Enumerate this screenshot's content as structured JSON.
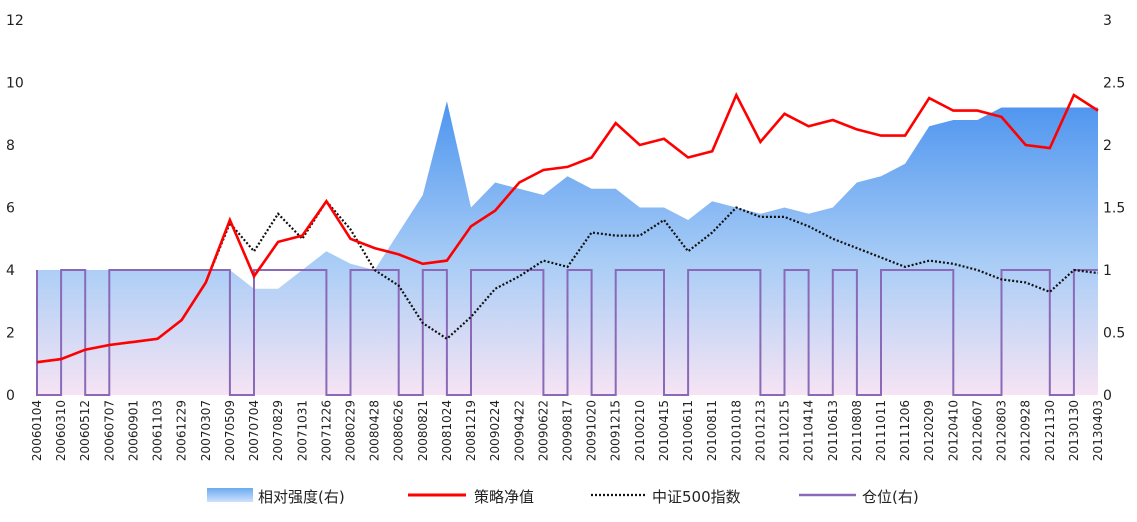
{
  "chart_data": {
    "type": "line",
    "left_axis": {
      "min": 0,
      "max": 12,
      "ticks": [
        "0",
        "2",
        "4",
        "6",
        "8",
        "10",
        "12"
      ]
    },
    "right_axis": {
      "min": 0,
      "max": 3,
      "ticks": [
        "0",
        "0.5",
        "1",
        "1.5",
        "2",
        "2.5",
        "3"
      ]
    },
    "categories": [
      "20060104",
      "20060310",
      "20060512",
      "20060707",
      "20060901",
      "20061103",
      "20061229",
      "20070307",
      "20070509",
      "20070704",
      "20070829",
      "20071031",
      "20071226",
      "20080229",
      "20080428",
      "20080626",
      "20080821",
      "20081024",
      "20081219",
      "20090224",
      "20090422",
      "20090622",
      "20090817",
      "20091020",
      "20091215",
      "20100210",
      "20100415",
      "20100611",
      "20100811",
      "20101018",
      "20101213",
      "20110215",
      "20110414",
      "20110613",
      "20110808",
      "20111011",
      "20111206",
      "20120209",
      "20120410",
      "20120607",
      "20120803",
      "20120928",
      "20121130",
      "20130130",
      "20130403"
    ],
    "series": [
      {
        "name": "相对强度(右)",
        "axis": "right",
        "type": "area",
        "values": [
          1.0,
          1.0,
          1.0,
          1.0,
          1.0,
          1.0,
          1.0,
          1.0,
          1.0,
          0.85,
          0.85,
          1.0,
          1.15,
          1.05,
          1.0,
          1.3,
          1.6,
          2.35,
          1.5,
          1.7,
          1.65,
          1.6,
          1.75,
          1.65,
          1.65,
          1.5,
          1.5,
          1.4,
          1.55,
          1.5,
          1.45,
          1.5,
          1.45,
          1.5,
          1.7,
          1.75,
          1.85,
          2.15,
          2.2,
          2.2,
          2.3,
          2.3,
          2.3,
          2.3,
          2.3
        ]
      },
      {
        "name": "策略净值",
        "axis": "left",
        "type": "line",
        "values": [
          1.05,
          1.15,
          1.45,
          1.6,
          1.7,
          1.8,
          2.4,
          3.6,
          5.6,
          3.8,
          4.9,
          5.1,
          6.2,
          5.0,
          4.7,
          4.5,
          4.2,
          4.3,
          5.4,
          5.9,
          6.8,
          7.2,
          7.3,
          7.6,
          8.7,
          8.0,
          8.2,
          7.6,
          7.8,
          9.6,
          8.1,
          9.0,
          8.6,
          8.8,
          8.5,
          8.3,
          8.3,
          9.5,
          9.1,
          9.1,
          8.9,
          8.0,
          7.9,
          9.6,
          9.1
        ]
      },
      {
        "name": "中证500指数",
        "axis": "left",
        "type": "line",
        "values": [
          1.05,
          1.15,
          1.45,
          1.6,
          1.7,
          1.8,
          2.4,
          3.6,
          5.5,
          4.6,
          5.8,
          5.0,
          6.2,
          5.3,
          4.0,
          3.5,
          2.3,
          1.8,
          2.5,
          3.4,
          3.8,
          4.3,
          4.1,
          5.2,
          5.1,
          5.1,
          5.6,
          4.6,
          5.2,
          6.0,
          5.7,
          5.7,
          5.4,
          5.0,
          4.7,
          4.4,
          4.1,
          4.3,
          4.2,
          4.0,
          3.7,
          3.6,
          3.3,
          4.0,
          3.9
        ]
      },
      {
        "name": "仓位(右)",
        "axis": "right",
        "type": "step",
        "values": [
          1,
          0,
          1,
          0,
          1,
          1,
          1,
          1,
          1,
          0,
          1,
          1,
          1,
          0,
          1,
          1,
          0,
          1,
          0,
          1,
          1,
          1,
          0,
          1,
          0,
          1,
          1,
          0,
          1,
          1,
          1,
          0,
          1,
          0,
          1,
          0,
          1,
          1,
          1,
          0,
          0,
          1,
          1,
          0,
          1
        ]
      }
    ],
    "colors": {
      "strength": "#5ea0ef",
      "nav": "#ff0000",
      "index": "#111111",
      "position": "#8a6ab8",
      "area_bottom": "#f3e3f2"
    },
    "legend_position": "bottom",
    "grid": false
  }
}
